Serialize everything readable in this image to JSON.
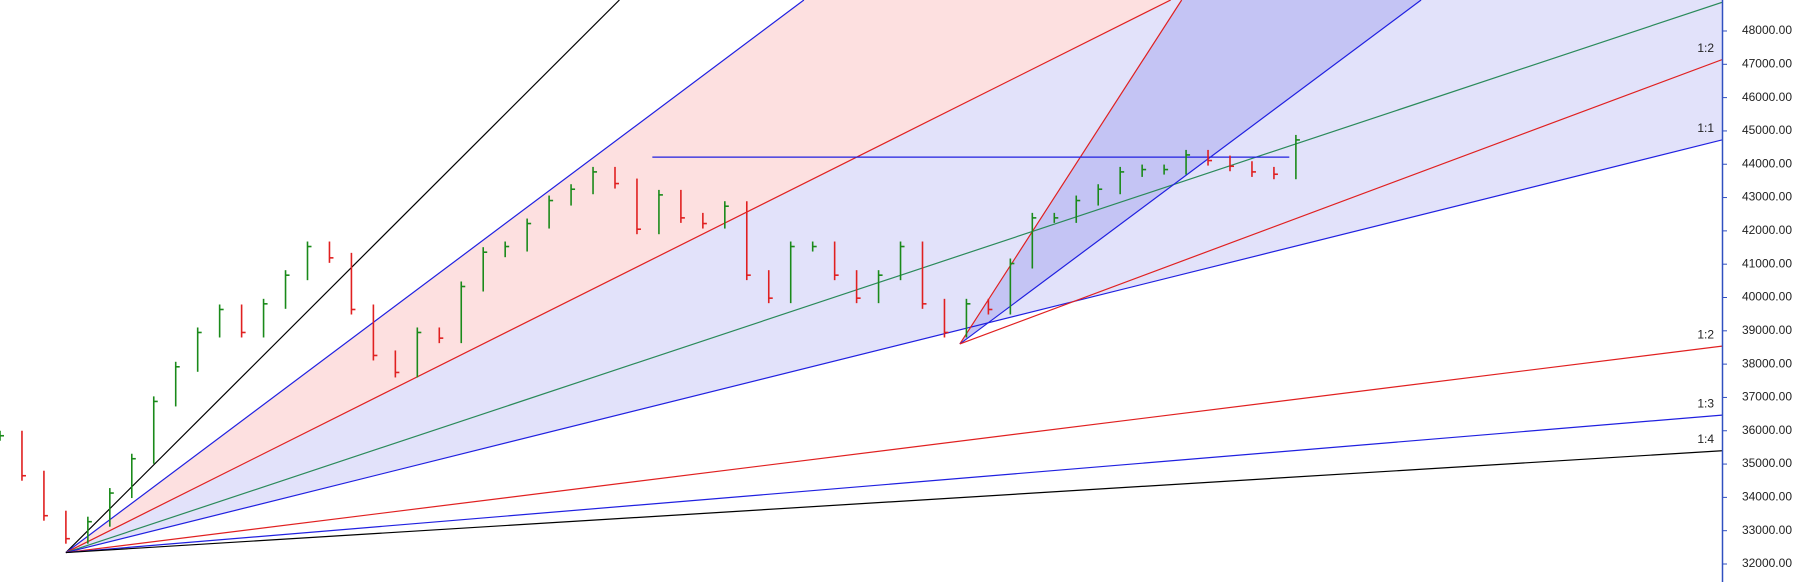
{
  "chart_data": {
    "type": "ohlc",
    "values": [
      35850,
      34650,
      33450,
      32760,
      33270,
      34130,
      35160,
      36880,
      37920,
      38950,
      39640,
      38950,
      39810,
      40670,
      41530,
      41190,
      39640,
      38260,
      37750,
      38950,
      38780,
      40330,
      41360,
      41530,
      42220,
      42910,
      43250,
      43770,
      43420,
      42050,
      43080,
      42390,
      42220,
      42740,
      40670,
      39980,
      41530,
      41530,
      40670,
      39980,
      40670,
      41530,
      39810,
      38950,
      39810,
      39640,
      41020,
      42390,
      42390,
      42910,
      43250,
      43770,
      43840,
      43840,
      44280,
      44110,
      43940,
      43770,
      43700,
      44730
    ],
    "up_color": "#1a8a1a",
    "down_color": "#e02020",
    "xlim": [
      0,
      78.4
    ],
    "ylim": [
      31460,
      48930
    ],
    "yticks": [
      {
        "value": 32000,
        "label": "32000.00"
      },
      {
        "value": 33000,
        "label": "33000.00"
      },
      {
        "value": 34000,
        "label": "34000.00"
      },
      {
        "value": 35000,
        "label": "35000.00"
      },
      {
        "value": 36000,
        "label": "36000.00"
      },
      {
        "value": 37000,
        "label": "37000.00"
      },
      {
        "value": 38000,
        "label": "38000.00"
      },
      {
        "value": 39000,
        "label": "39000.00"
      },
      {
        "value": 40000,
        "label": "40000.00"
      },
      {
        "value": 41000,
        "label": "41000.00"
      },
      {
        "value": 42000,
        "label": "42000.00"
      },
      {
        "value": 43000,
        "label": "43000.00"
      },
      {
        "value": 44000,
        "label": "44000.00"
      },
      {
        "value": 45000,
        "label": "45000.00"
      },
      {
        "value": 46000,
        "label": "46000.00"
      },
      {
        "value": 47000,
        "label": "47000.00"
      },
      {
        "value": 48000,
        "label": "48000.00"
      }
    ],
    "lines": [
      {
        "from": [
          3,
          32343
        ],
        "to": [
          28.2,
          48930
        ],
        "color": "#000000"
      },
      {
        "from": [
          3,
          32343
        ],
        "to": [
          36.6,
          48930
        ],
        "color": "#2020e0"
      },
      {
        "from": [
          3,
          32343
        ],
        "to": [
          53.3,
          48930
        ],
        "color": "#e02020"
      },
      {
        "from": [
          3,
          32343
        ],
        "to": [
          78.4,
          48860
        ],
        "color": "#2a8a5a"
      },
      {
        "from": [
          3,
          32343
        ],
        "to": [
          78.4,
          44730
        ],
        "color": "#2020e0",
        "label": "1:1"
      },
      {
        "from": [
          3,
          32343
        ],
        "to": [
          78.4,
          38540
        ],
        "color": "#e02020",
        "label": "1:2"
      },
      {
        "from": [
          3,
          32343
        ],
        "to": [
          78.4,
          36470
        ],
        "color": "#2020e0",
        "label": "1:3"
      },
      {
        "from": [
          3,
          32343
        ],
        "to": [
          78.4,
          35400
        ],
        "color": "#000000",
        "label": "1:4"
      },
      {
        "from": [
          43.7,
          38606
        ],
        "to": [
          53.8,
          48930
        ],
        "color": "#e02020"
      },
      {
        "from": [
          43.7,
          38606
        ],
        "to": [
          64.7,
          48930
        ],
        "color": "#2020e0"
      },
      {
        "from": [
          43.7,
          38606
        ],
        "to": [
          78.4,
          47140
        ],
        "color": "#e02020",
        "label": "1:2"
      },
      {
        "from": [
          29.7,
          44214
        ],
        "to": [
          58.7,
          44214
        ],
        "color": "#2020e0"
      }
    ],
    "fills": [
      {
        "between": [
          1,
          2
        ],
        "color": "#fde0e0"
      },
      {
        "between": [
          2,
          4
        ],
        "color": "#e2e2fa"
      },
      {
        "between": [
          8,
          9
        ],
        "color": "#c4c4f4"
      }
    ]
  }
}
